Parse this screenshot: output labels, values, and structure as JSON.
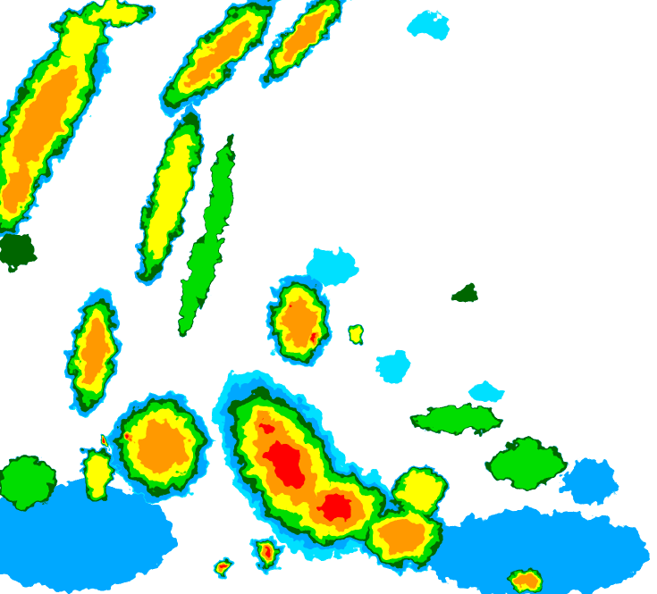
{
  "image": {
    "kind": "weather radar reflectivity map",
    "background_color": "#ffffff",
    "palette": {
      "level_0": "#00e0ff",
      "level_1": "#00a8ff",
      "level_2": "#006600",
      "level_3": "#00dd00",
      "level_4": "#ffff00",
      "level_5": "#ff9900",
      "level_6": "#ff0000"
    }
  }
}
